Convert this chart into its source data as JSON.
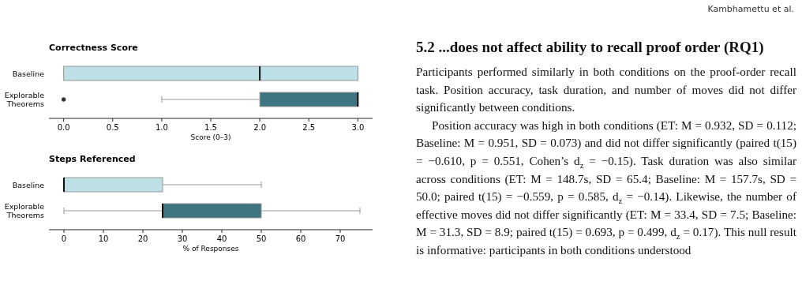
{
  "chart_data": [
    {
      "type": "box",
      "title": "Correctness Score",
      "xlabel": "Score (0–3)",
      "orientation": "horizontal",
      "categories": [
        "Baseline",
        "Explorable Theorems"
      ],
      "colors": [
        "#bde0e6",
        "#3f7580"
      ],
      "boxes": [
        {
          "low": 0,
          "q1": 0,
          "median": 2,
          "q3": 3,
          "high": 3
        },
        {
          "low": 1,
          "q1": 2,
          "median": 3,
          "q3": 3,
          "high": 3,
          "outliers": [
            0
          ]
        }
      ],
      "xlim": [
        -0.15,
        3.15
      ],
      "xticks": [
        {
          "value": 0,
          "label": "0.0"
        },
        {
          "value": 0.5,
          "label": "0.5"
        },
        {
          "value": 1,
          "label": "1.0"
        },
        {
          "value": 1.5,
          "label": "1.5"
        },
        {
          "value": 2,
          "label": "2.0"
        },
        {
          "value": 2.5,
          "label": "2.5"
        },
        {
          "value": 3,
          "label": "3.0"
        }
      ]
    },
    {
      "type": "box",
      "title": "Steps Referenced",
      "xlabel": "% of Responses",
      "orientation": "horizontal",
      "categories": [
        "Baseline",
        "Explorable Theorems"
      ],
      "colors": [
        "#bde0e6",
        "#3f7580"
      ],
      "boxes": [
        {
          "low": 0,
          "q1": 0,
          "median": 0,
          "q3": 25,
          "high": 50
        },
        {
          "low": 0,
          "q1": 25,
          "median": 25,
          "q3": 50,
          "high": 75
        }
      ],
      "xlim": [
        -3.8,
        78.2
      ],
      "xticks": [
        0,
        10,
        20,
        30,
        40,
        50,
        60,
        70
      ]
    },
    {
      "type": "other",
      "title": "5.2   ...does not affect ability to recall proof order (RQ1)",
      "annotations": [
        "Kambhamettu et al.",
        "Participants performed similarly in both conditions on the proof-order recall task. Position accuracy, task duration, and number of moves did not differ significantly between conditions.",
        "Position accuracy was high in both conditions (ET: M = 0.932, SD = 0.112; Baseline: M = 0.951, SD = 0.073) and did not differ significantly (paired t(15) = −0.610, p = 0.551, Cohen’s d$_{z}$ = −0.15). Task duration was also similar across conditions (ET: M = 148.7s, SD = 65.4; Baseline: M = 157.7s, SD = 50.0; paired t(15) = −0.559, p = 0.585, d$_{z}$ = −0.14). Likewise, the number of effective moves did not differ significantly (ET: M = 33.4, SD = 7.5; Baseline: M = 31.3, SD = 8.9; paired t(15) = 0.693, p = 0.499, d$_{z}$ = 0.17). This null result is informative: participants in both conditions understood"
      ]
    }
  ]
}
